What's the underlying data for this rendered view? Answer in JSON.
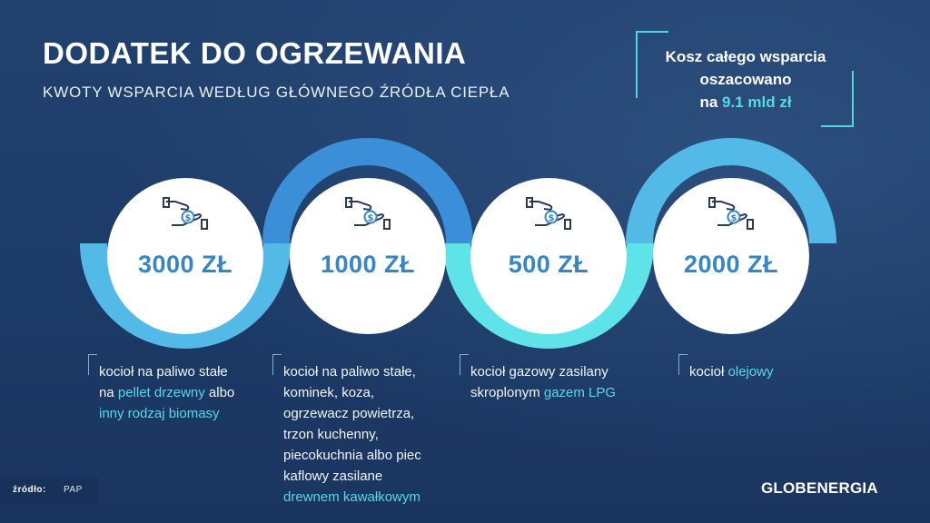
{
  "header": {
    "title": "DODATEK DO OGRZEWANIA",
    "subtitle": "KWOTY WSPARCIA WEDŁUG GŁÓWNEGO ŹRÓDŁA CIEPŁA"
  },
  "cost_box": {
    "line1": "Kosz całego wsparcia",
    "line2": "oszacowano",
    "line3_prefix": "na ",
    "line3_value": "9.1 mld zł"
  },
  "colors": {
    "background": "#1f3d6a",
    "accent": "#56d8e8",
    "amount_text": "#3586c9",
    "wave_light_blue": "#53b9e7",
    "wave_blue": "#3b8fd8",
    "wave_cyan": "#5de3e8"
  },
  "icon_name": "hand-coin-icon",
  "items": [
    {
      "amount": "3000 ZŁ",
      "desc": {
        "l1": "kocioł na paliwo stałe",
        "l2_a": "na ",
        "l2_b": "pellet drzewny",
        "l2_c": " albo",
        "l3": "inny rodzaj biomasy"
      }
    },
    {
      "amount": "1000 ZŁ",
      "desc": {
        "l1": "kocioł na paliwo stałe,",
        "l2": "kominek, koza,",
        "l3": "ogrzewacz powietrza,",
        "l4": "trzon kuchenny,",
        "l5": "piecokuchnia albo piec",
        "l6": "kaflowy zasilane",
        "l7": "drewnem kawałkowym"
      }
    },
    {
      "amount": "500 ZŁ",
      "desc": {
        "l1": "kocioł gazowy zasilany",
        "l2_a": "skroplonym ",
        "l2_b": "gazem LPG"
      }
    },
    {
      "amount": "2000 ZŁ",
      "desc": {
        "l1_a": "kocioł ",
        "l1_b": "olejowy"
      }
    }
  ],
  "footer": {
    "source_label": "źródło:",
    "source_value": "PAP",
    "logo": "GLOBENERGIA"
  }
}
